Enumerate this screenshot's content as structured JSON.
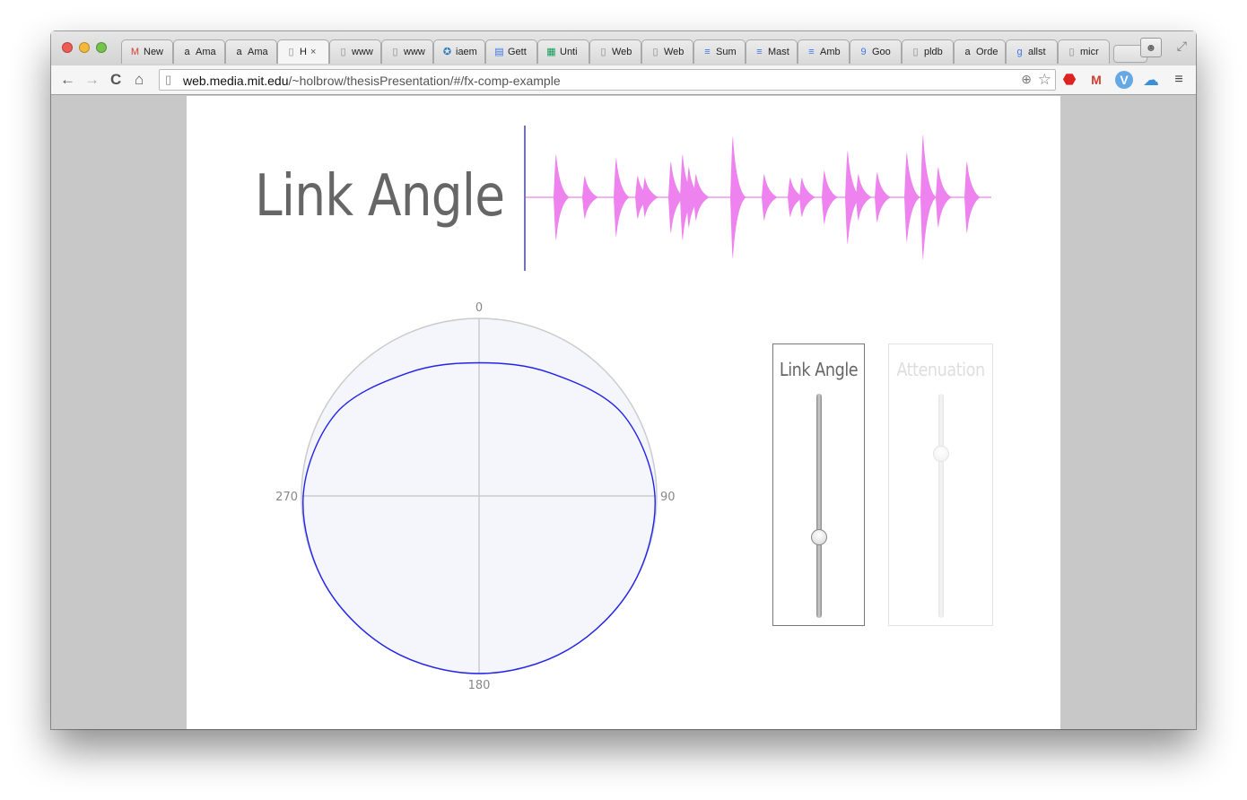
{
  "browser": {
    "tabs": [
      {
        "label": "New",
        "icon": "gmail-icon",
        "glyph": "M",
        "color": "#d23f31"
      },
      {
        "label": "Ama",
        "icon": "amazon-icon",
        "glyph": "a",
        "color": "#222"
      },
      {
        "label": "Ama",
        "icon": "amazon-icon",
        "glyph": "a",
        "color": "#222"
      },
      {
        "label": "H",
        "icon": "page-icon",
        "glyph": "▯",
        "color": "#888",
        "active": true,
        "close": "×"
      },
      {
        "label": "www",
        "icon": "page-icon",
        "glyph": "▯",
        "color": "#888"
      },
      {
        "label": "www",
        "icon": "page-icon",
        "glyph": "▯",
        "color": "#888"
      },
      {
        "label": "iaem",
        "icon": "iaem-icon",
        "glyph": "✪",
        "color": "#2a7ab8"
      },
      {
        "label": "Gett",
        "icon": "slides-icon",
        "glyph": "▤",
        "color": "#3b78e7"
      },
      {
        "label": "Unti",
        "icon": "sheets-icon",
        "glyph": "▦",
        "color": "#0f9d58"
      },
      {
        "label": "Web",
        "icon": "page-icon",
        "glyph": "▯",
        "color": "#888"
      },
      {
        "label": "Web",
        "icon": "page-icon",
        "glyph": "▯",
        "color": "#888"
      },
      {
        "label": "Sum",
        "icon": "docs-icon",
        "glyph": "≡",
        "color": "#3b78e7"
      },
      {
        "label": "Mast",
        "icon": "docs-icon",
        "glyph": "≡",
        "color": "#3b78e7"
      },
      {
        "label": "Amb",
        "icon": "docs-icon",
        "glyph": "≡",
        "color": "#3b78e7"
      },
      {
        "label": "Goo",
        "icon": "calendar-icon",
        "glyph": "9",
        "color": "#3b78e7"
      },
      {
        "label": "pldb",
        "icon": "page-icon",
        "glyph": "▯",
        "color": "#888"
      },
      {
        "label": "Orde",
        "icon": "amazon-icon",
        "glyph": "a",
        "color": "#222"
      },
      {
        "label": "allst",
        "icon": "google-icon",
        "glyph": "g",
        "color": "#3b78e7"
      },
      {
        "label": "micr",
        "icon": "page-icon",
        "glyph": "▯",
        "color": "#888"
      }
    ],
    "url_host": "web.media.mit.edu",
    "url_path": "/~holbrow/thesisPresentation/#/fx-comp-example",
    "toolbar_icons": {
      "back": "←",
      "forward": "→",
      "reload": "C",
      "home": "⌂",
      "zoom": "⊕",
      "star": "☆"
    }
  },
  "slide": {
    "title": "Link Angle",
    "waveform_color": "#ee82ee",
    "playhead_color": "#4444aa"
  },
  "chart_data": {
    "type": "polar",
    "angle_labels": [
      "0",
      "90",
      "180",
      "270"
    ],
    "radius_max": 1.0,
    "series": [
      {
        "color": "#2222ee",
        "points": [
          {
            "angle": 0,
            "r": 0.75
          },
          {
            "angle": 30,
            "r": 0.8
          },
          {
            "angle": 60,
            "r": 0.93
          },
          {
            "angle": 90,
            "r": 0.99
          },
          {
            "angle": 120,
            "r": 1.0
          },
          {
            "angle": 150,
            "r": 1.0
          },
          {
            "angle": 180,
            "r": 1.0
          },
          {
            "angle": 210,
            "r": 1.0
          },
          {
            "angle": 240,
            "r": 1.0
          },
          {
            "angle": 270,
            "r": 0.99
          },
          {
            "angle": 300,
            "r": 0.93
          },
          {
            "angle": 330,
            "r": 0.8
          }
        ]
      }
    ],
    "fill_color": "#f5f6fc",
    "grid_color": "#cccccc"
  },
  "controls": {
    "link_angle": {
      "label": "Link Angle",
      "value": 0.35,
      "enabled": true
    },
    "attenuation": {
      "label": "Attenuation",
      "value": 0.75,
      "enabled": false
    }
  }
}
